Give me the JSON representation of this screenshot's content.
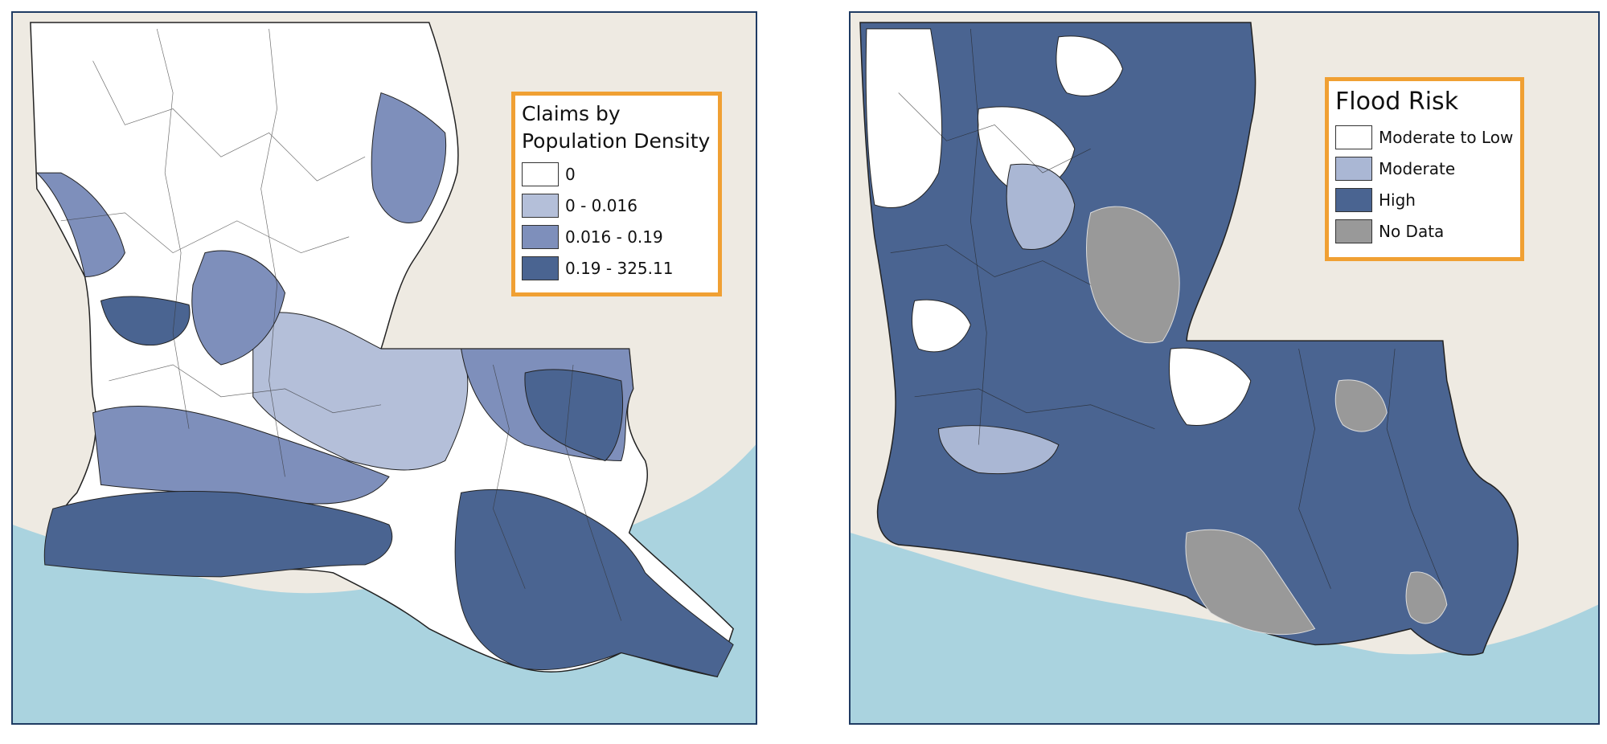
{
  "colors": {
    "land": "#eeeae2",
    "water": "#aad3df",
    "border": "#1f3b63",
    "legend_border": "#f0a033"
  },
  "left_map": {
    "legend": {
      "title_line1": "Claims by",
      "title_line2": "Population Density",
      "items": [
        {
          "label": "0",
          "color": "#ffffff"
        },
        {
          "label": "0 - 0.016",
          "color": "#b4bfd9"
        },
        {
          "label": "0.016 - 0.19",
          "color": "#7e8fbb"
        },
        {
          "label": "0.19 - 325.11",
          "color": "#4a6491"
        }
      ]
    }
  },
  "right_map": {
    "legend": {
      "title": "Flood Risk",
      "items": [
        {
          "label": "Moderate to Low",
          "color": "#ffffff"
        },
        {
          "label": "Moderate",
          "color": "#aab7d4"
        },
        {
          "label": "High",
          "color": "#4a6491"
        },
        {
          "label": "No Data",
          "color": "#999999"
        }
      ]
    }
  }
}
